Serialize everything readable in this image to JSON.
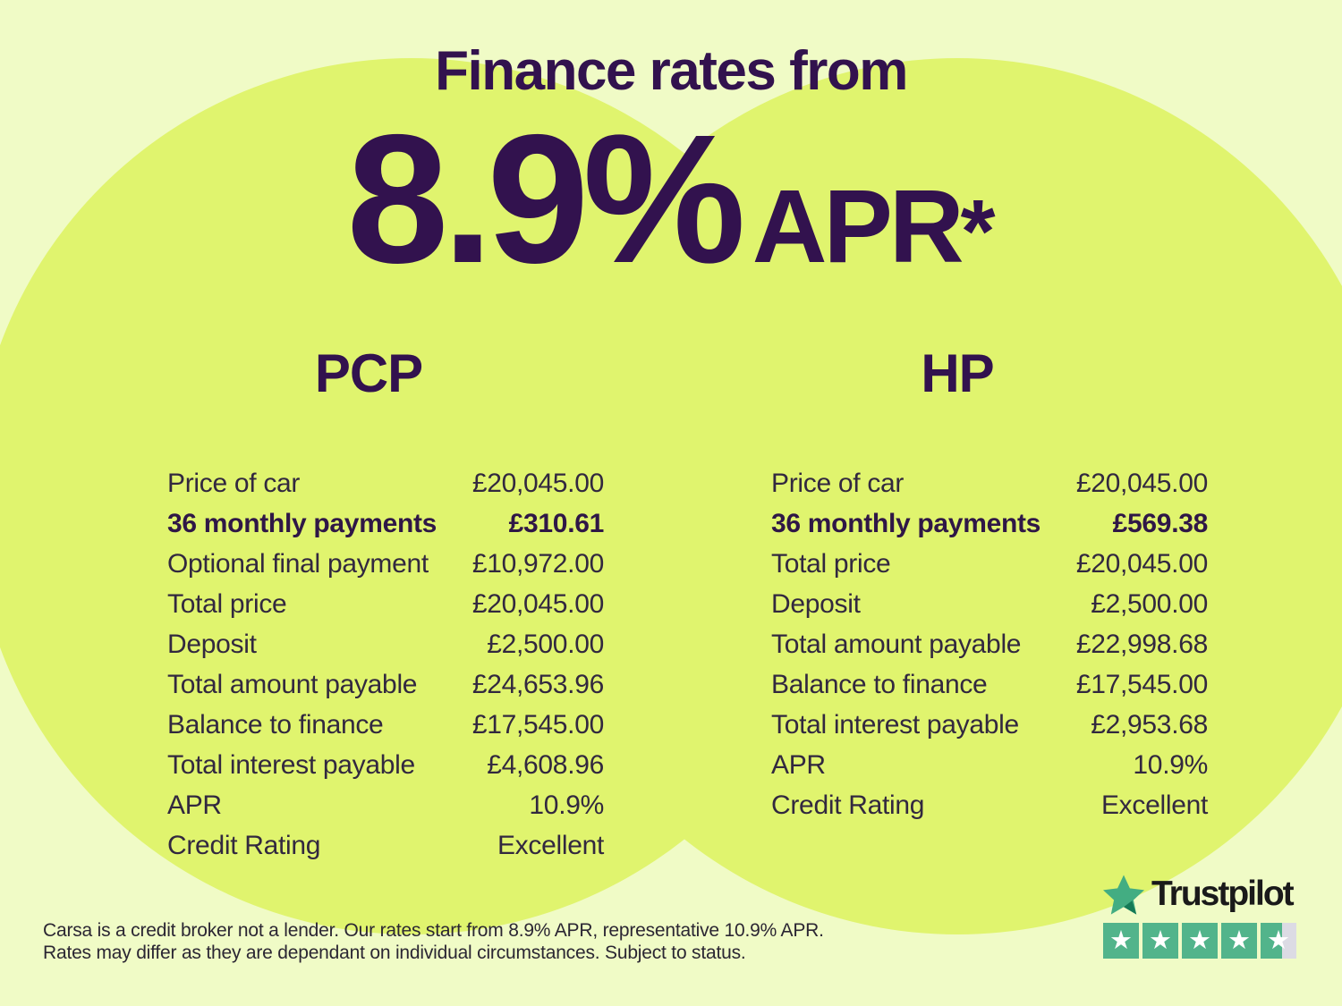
{
  "header": {
    "title": "Finance rates from",
    "rate": "8.9%",
    "apr": "APR",
    "footnote_marker": "*"
  },
  "tables": [
    {
      "title": "PCP",
      "rows": [
        {
          "label": "Price of car",
          "value": "£20,045.00",
          "bold": false
        },
        {
          "label": "36 monthly payments",
          "value": "£310.61",
          "bold": true
        },
        {
          "label": "Optional final payment",
          "value": "£10,972.00",
          "bold": false
        },
        {
          "label": "Total price",
          "value": "£20,045.00",
          "bold": false
        },
        {
          "label": "Deposit",
          "value": "£2,500.00",
          "bold": false
        },
        {
          "label": "Total amount payable",
          "value": "£24,653.96",
          "bold": false
        },
        {
          "label": "Balance to finance",
          "value": "£17,545.00",
          "bold": false
        },
        {
          "label": "Total interest payable",
          "value": "£4,608.96",
          "bold": false
        },
        {
          "label": "APR",
          "value": "10.9%",
          "bold": false
        },
        {
          "label": "Credit Rating",
          "value": "Excellent",
          "bold": false
        }
      ]
    },
    {
      "title": "HP",
      "rows": [
        {
          "label": "Price of car",
          "value": "£20,045.00",
          "bold": false
        },
        {
          "label": "36 monthly payments",
          "value": "£569.38",
          "bold": true
        },
        {
          "label": "Total price",
          "value": "£20,045.00",
          "bold": false
        },
        {
          "label": "Deposit",
          "value": "£2,500.00",
          "bold": false
        },
        {
          "label": "Total amount payable",
          "value": "£22,998.68",
          "bold": false
        },
        {
          "label": "Balance to finance",
          "value": "£17,545.00",
          "bold": false
        },
        {
          "label": "Total interest payable",
          "value": "£2,953.68",
          "bold": false
        },
        {
          "label": "APR",
          "value": "10.9%",
          "bold": false
        },
        {
          "label": "Credit Rating",
          "value": "Excellent",
          "bold": false
        }
      ]
    }
  ],
  "disclaimer": {
    "line1": "Carsa is a credit broker not a lender. Our rates start from 8.9% APR, representative 10.9% APR.",
    "line2": "Rates may differ as they are dependant on individual circumstances. Subject to status."
  },
  "trustpilot": {
    "brand": "Trustpilot",
    "rating": 4.6,
    "star_count": 5,
    "star_glyph": "★",
    "star_color": "#52b48b",
    "star_empty_color": "#dcdbe4"
  },
  "colors": {
    "background": "#f0fbc6",
    "circle": "#e0f46e",
    "heading_text": "#32124e",
    "table_text": "#32283f",
    "bold_row_text": "#2f1746",
    "disclaimer_text": "#2b2633",
    "trustpilot_green": "#52b48b",
    "trustpilot_star_empty": "#dcdbe4",
    "trustpilot_text": "#1a1a1a"
  }
}
